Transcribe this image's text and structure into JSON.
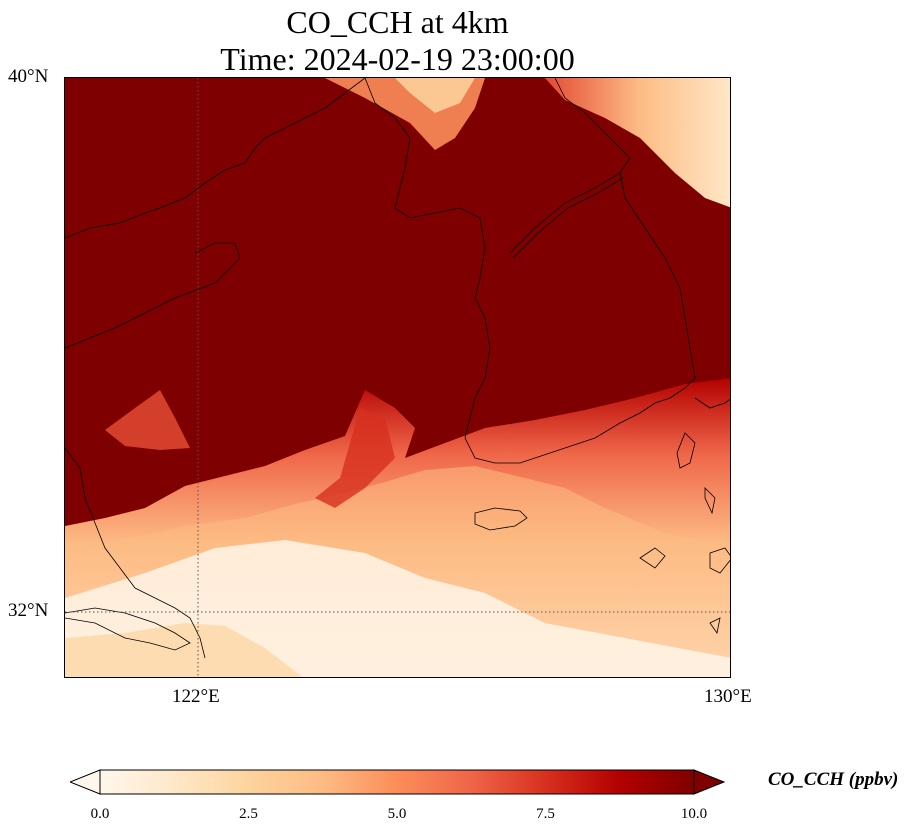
{
  "title": {
    "line1": "CO_CCH at 4km",
    "line2": "Time: 2024-02-19 23:00:00"
  },
  "map": {
    "lat_ticks": [
      {
        "label": "40°N",
        "lat": 40
      },
      {
        "label": "32°N",
        "lat": 32
      }
    ],
    "lon_ticks": [
      {
        "label": "122°E",
        "lon": 122
      },
      {
        "label": "130°E",
        "lon": 130
      }
    ],
    "extent": {
      "lon_min": 120,
      "lon_max": 130,
      "lat_min": 31,
      "lat_max": 40
    }
  },
  "colorbar": {
    "label": "CO_CCH (ppbv)",
    "ticks": [
      "0.0",
      "2.5",
      "5.0",
      "7.5",
      "10.0"
    ],
    "min": 0,
    "max": 10,
    "extend": "both",
    "colors": [
      "#fff7ec",
      "#fee8c8",
      "#fdd49e",
      "#fdbb84",
      "#fc8d59",
      "#ef6548",
      "#d7301f",
      "#b30000",
      "#7f0000"
    ]
  }
}
